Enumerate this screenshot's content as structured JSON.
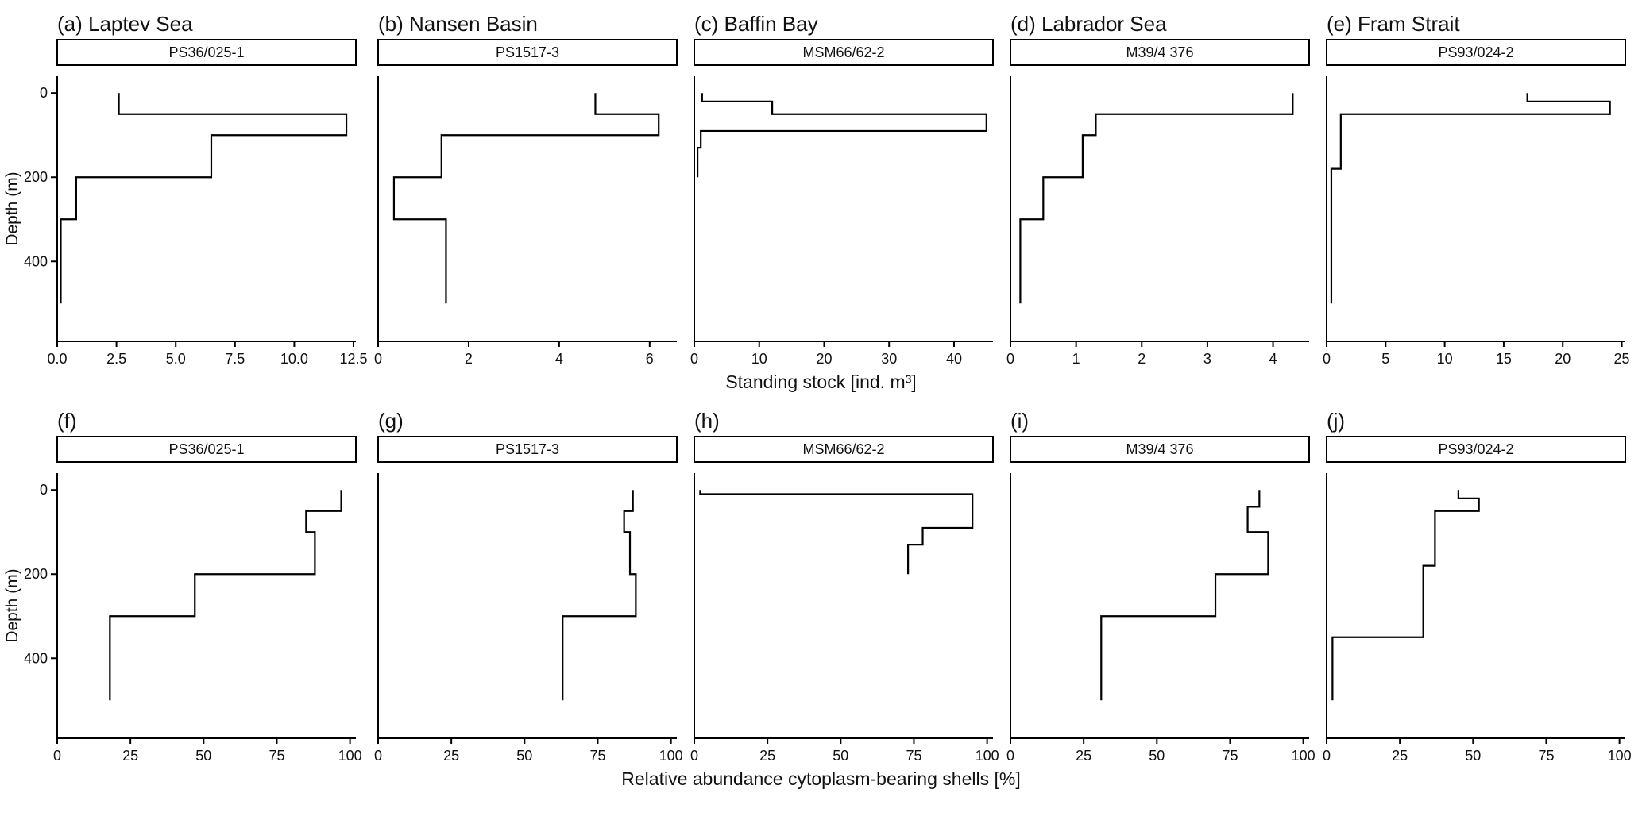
{
  "figure": {
    "row1_axis_title": "Standing stock [ind. m³]",
    "row2_axis_title": "Relative abundance cytoplasm-bearing shells [%]",
    "ylabel": "Depth (m)",
    "line_color": "#000000",
    "background": "#ffffff"
  },
  "chart_data": [
    {
      "id": "a",
      "row": 0,
      "type": "line",
      "profile": "stepped-depth-profile",
      "panel_label": "(a) Laptev Sea",
      "station": "PS36/025-1",
      "xlabel": "Standing stock [ind. m³]",
      "ylabel": "Depth (m)",
      "xlim": [
        0,
        12.6
      ],
      "ylim": [
        0,
        500
      ],
      "show_ytick_labels": true,
      "xticks": [
        {
          "v": 0,
          "label": "0.0"
        },
        {
          "v": 2.5,
          "label": "2.5"
        },
        {
          "v": 5,
          "label": "5.0"
        },
        {
          "v": 7.5,
          "label": "7.5"
        },
        {
          "v": 10,
          "label": "10.0"
        },
        {
          "v": 12.5,
          "label": "12.5"
        }
      ],
      "yticks": [
        {
          "v": 0,
          "label": "0"
        },
        {
          "v": 200,
          "label": "200"
        },
        {
          "v": 400,
          "label": "400"
        }
      ],
      "bins": [
        {
          "top": 0,
          "bottom": 50,
          "value": 2.6
        },
        {
          "top": 50,
          "bottom": 100,
          "value": 12.2
        },
        {
          "top": 100,
          "bottom": 200,
          "value": 6.5
        },
        {
          "top": 200,
          "bottom": 300,
          "value": 0.8
        },
        {
          "top": 300,
          "bottom": 500,
          "value": 0.15
        }
      ]
    },
    {
      "id": "b",
      "row": 0,
      "type": "line",
      "profile": "stepped-depth-profile",
      "panel_label": "(b) Nansen Basin",
      "station": "PS1517-3",
      "xlabel": "Standing stock [ind. m³]",
      "ylabel": "Depth (m)",
      "xlim": [
        0,
        6.6
      ],
      "ylim": [
        0,
        500
      ],
      "show_ytick_labels": false,
      "xticks": [
        {
          "v": 0,
          "label": "0"
        },
        {
          "v": 2,
          "label": "2"
        },
        {
          "v": 4,
          "label": "4"
        },
        {
          "v": 6,
          "label": "6"
        }
      ],
      "yticks": [
        {
          "v": 0,
          "label": "0"
        },
        {
          "v": 200,
          "label": "200"
        },
        {
          "v": 400,
          "label": "400"
        }
      ],
      "bins": [
        {
          "top": 0,
          "bottom": 50,
          "value": 4.8
        },
        {
          "top": 50,
          "bottom": 100,
          "value": 6.2
        },
        {
          "top": 100,
          "bottom": 200,
          "value": 1.4
        },
        {
          "top": 200,
          "bottom": 300,
          "value": 0.35
        },
        {
          "top": 300,
          "bottom": 500,
          "value": 1.5
        }
      ]
    },
    {
      "id": "c",
      "row": 0,
      "type": "line",
      "profile": "stepped-depth-profile",
      "panel_label": "(c) Baffin Bay",
      "station": "MSM66/62-2",
      "xlabel": "Standing stock [ind. m³]",
      "ylabel": "Depth (m)",
      "xlim": [
        0,
        46
      ],
      "ylim": [
        0,
        200
      ],
      "show_ytick_labels": false,
      "xticks": [
        {
          "v": 0,
          "label": "0"
        },
        {
          "v": 10,
          "label": "10"
        },
        {
          "v": 20,
          "label": "20"
        },
        {
          "v": 30,
          "label": "30"
        },
        {
          "v": 40,
          "label": "40"
        }
      ],
      "yticks": [
        {
          "v": 0,
          "label": "0"
        },
        {
          "v": 200,
          "label": "200"
        },
        {
          "v": 400,
          "label": "400"
        }
      ],
      "bins": [
        {
          "top": 0,
          "bottom": 20,
          "value": 1.2
        },
        {
          "top": 20,
          "bottom": 50,
          "value": 12
        },
        {
          "top": 50,
          "bottom": 90,
          "value": 45
        },
        {
          "top": 90,
          "bottom": 130,
          "value": 1.0
        },
        {
          "top": 130,
          "bottom": 200,
          "value": 0.5
        }
      ]
    },
    {
      "id": "d",
      "row": 0,
      "type": "line",
      "profile": "stepped-depth-profile",
      "panel_label": "(d) Labrador Sea",
      "station": "M39/4 376",
      "xlabel": "Standing stock [ind. m³]",
      "ylabel": "Depth (m)",
      "xlim": [
        0,
        4.55
      ],
      "ylim": [
        0,
        500
      ],
      "show_ytick_labels": false,
      "xticks": [
        {
          "v": 0,
          "label": "0"
        },
        {
          "v": 1,
          "label": "1"
        },
        {
          "v": 2,
          "label": "2"
        },
        {
          "v": 3,
          "label": "3"
        },
        {
          "v": 4,
          "label": "4"
        }
      ],
      "yticks": [
        {
          "v": 0,
          "label": "0"
        },
        {
          "v": 200,
          "label": "200"
        },
        {
          "v": 400,
          "label": "400"
        }
      ],
      "bins": [
        {
          "top": 0,
          "bottom": 50,
          "value": 4.3
        },
        {
          "top": 50,
          "bottom": 100,
          "value": 1.3
        },
        {
          "top": 100,
          "bottom": 200,
          "value": 1.1
        },
        {
          "top": 200,
          "bottom": 300,
          "value": 0.5
        },
        {
          "top": 300,
          "bottom": 500,
          "value": 0.15
        }
      ]
    },
    {
      "id": "e",
      "row": 0,
      "type": "line",
      "profile": "stepped-depth-profile",
      "panel_label": "(e) Fram Strait",
      "station": "PS93/024-2",
      "xlabel": "Standing stock [ind. m³]",
      "ylabel": "Depth (m)",
      "xlim": [
        0,
        25.3
      ],
      "ylim": [
        0,
        500
      ],
      "show_ytick_labels": false,
      "xticks": [
        {
          "v": 0,
          "label": "0"
        },
        {
          "v": 5,
          "label": "5"
        },
        {
          "v": 10,
          "label": "10"
        },
        {
          "v": 15,
          "label": "15"
        },
        {
          "v": 20,
          "label": "20"
        },
        {
          "v": 25,
          "label": "25"
        }
      ],
      "yticks": [
        {
          "v": 0,
          "label": "0"
        },
        {
          "v": 200,
          "label": "200"
        },
        {
          "v": 400,
          "label": "400"
        }
      ],
      "bins": [
        {
          "top": 0,
          "bottom": 20,
          "value": 17
        },
        {
          "top": 20,
          "bottom": 50,
          "value": 24
        },
        {
          "top": 50,
          "bottom": 180,
          "value": 1.2
        },
        {
          "top": 180,
          "bottom": 500,
          "value": 0.4
        }
      ]
    },
    {
      "id": "f",
      "row": 1,
      "type": "line",
      "profile": "stepped-depth-profile",
      "panel_label": "(f)",
      "station": "PS36/025-1",
      "xlabel": "Relative abundance cytoplasm-bearing shells [%]",
      "ylabel": "Depth (m)",
      "xlim": [
        0,
        102
      ],
      "ylim": [
        0,
        500
      ],
      "show_ytick_labels": true,
      "xticks": [
        {
          "v": 0,
          "label": "0"
        },
        {
          "v": 25,
          "label": "25"
        },
        {
          "v": 50,
          "label": "50"
        },
        {
          "v": 75,
          "label": "75"
        },
        {
          "v": 100,
          "label": "100"
        }
      ],
      "yticks": [
        {
          "v": 0,
          "label": "0"
        },
        {
          "v": 200,
          "label": "200"
        },
        {
          "v": 400,
          "label": "400"
        }
      ],
      "bins": [
        {
          "top": 0,
          "bottom": 50,
          "value": 97
        },
        {
          "top": 50,
          "bottom": 100,
          "value": 85
        },
        {
          "top": 100,
          "bottom": 200,
          "value": 88
        },
        {
          "top": 200,
          "bottom": 300,
          "value": 47
        },
        {
          "top": 300,
          "bottom": 500,
          "value": 18
        }
      ]
    },
    {
      "id": "g",
      "row": 1,
      "type": "line",
      "profile": "stepped-depth-profile",
      "panel_label": "(g)",
      "station": "PS1517-3",
      "xlabel": "Relative abundance cytoplasm-bearing shells [%]",
      "ylabel": "Depth (m)",
      "xlim": [
        0,
        102
      ],
      "ylim": [
        0,
        500
      ],
      "show_ytick_labels": false,
      "xticks": [
        {
          "v": 0,
          "label": "0"
        },
        {
          "v": 25,
          "label": "25"
        },
        {
          "v": 50,
          "label": "50"
        },
        {
          "v": 75,
          "label": "75"
        },
        {
          "v": 100,
          "label": "100"
        }
      ],
      "yticks": [
        {
          "v": 0,
          "label": "0"
        },
        {
          "v": 200,
          "label": "200"
        },
        {
          "v": 400,
          "label": "400"
        }
      ],
      "bins": [
        {
          "top": 0,
          "bottom": 50,
          "value": 87
        },
        {
          "top": 50,
          "bottom": 100,
          "value": 84
        },
        {
          "top": 100,
          "bottom": 200,
          "value": 86
        },
        {
          "top": 200,
          "bottom": 300,
          "value": 88
        },
        {
          "top": 300,
          "bottom": 500,
          "value": 63
        }
      ]
    },
    {
      "id": "h",
      "row": 1,
      "type": "line",
      "profile": "stepped-depth-profile",
      "panel_label": "(h)",
      "station": "MSM66/62-2",
      "xlabel": "Relative abundance cytoplasm-bearing shells [%]",
      "ylabel": "Depth (m)",
      "xlim": [
        0,
        102
      ],
      "ylim": [
        0,
        200
      ],
      "show_ytick_labels": false,
      "xticks": [
        {
          "v": 0,
          "label": "0"
        },
        {
          "v": 25,
          "label": "25"
        },
        {
          "v": 50,
          "label": "50"
        },
        {
          "v": 75,
          "label": "75"
        },
        {
          "v": 100,
          "label": "100"
        }
      ],
      "yticks": [
        {
          "v": 0,
          "label": "0"
        },
        {
          "v": 200,
          "label": "200"
        },
        {
          "v": 400,
          "label": "400"
        }
      ],
      "bins": [
        {
          "top": 0,
          "bottom": 10,
          "value": 2
        },
        {
          "top": 10,
          "bottom": 90,
          "value": 95
        },
        {
          "top": 90,
          "bottom": 130,
          "value": 78
        },
        {
          "top": 130,
          "bottom": 200,
          "value": 73
        }
      ]
    },
    {
      "id": "i",
      "row": 1,
      "type": "line",
      "profile": "stepped-depth-profile",
      "panel_label": "(i)",
      "station": "M39/4 376",
      "xlabel": "Relative abundance cytoplasm-bearing shells [%]",
      "ylabel": "Depth (m)",
      "xlim": [
        0,
        102
      ],
      "ylim": [
        0,
        500
      ],
      "show_ytick_labels": false,
      "xticks": [
        {
          "v": 0,
          "label": "0"
        },
        {
          "v": 25,
          "label": "25"
        },
        {
          "v": 50,
          "label": "50"
        },
        {
          "v": 75,
          "label": "75"
        },
        {
          "v": 100,
          "label": "100"
        }
      ],
      "yticks": [
        {
          "v": 0,
          "label": "0"
        },
        {
          "v": 200,
          "label": "200"
        },
        {
          "v": 400,
          "label": "400"
        }
      ],
      "bins": [
        {
          "top": 0,
          "bottom": 40,
          "value": 85
        },
        {
          "top": 40,
          "bottom": 100,
          "value": 81
        },
        {
          "top": 100,
          "bottom": 200,
          "value": 88
        },
        {
          "top": 200,
          "bottom": 300,
          "value": 70
        },
        {
          "top": 300,
          "bottom": 500,
          "value": 31
        }
      ]
    },
    {
      "id": "j",
      "row": 1,
      "type": "line",
      "profile": "stepped-depth-profile",
      "panel_label": "(j)",
      "station": "PS93/024-2",
      "xlabel": "Relative abundance cytoplasm-bearing shells [%]",
      "ylabel": "Depth (m)",
      "xlim": [
        0,
        102
      ],
      "ylim": [
        0,
        500
      ],
      "show_ytick_labels": false,
      "xticks": [
        {
          "v": 0,
          "label": "0"
        },
        {
          "v": 25,
          "label": "25"
        },
        {
          "v": 50,
          "label": "50"
        },
        {
          "v": 75,
          "label": "75"
        },
        {
          "v": 100,
          "label": "100"
        }
      ],
      "yticks": [
        {
          "v": 0,
          "label": "0"
        },
        {
          "v": 200,
          "label": "200"
        },
        {
          "v": 400,
          "label": "400"
        }
      ],
      "bins": [
        {
          "top": 0,
          "bottom": 20,
          "value": 45
        },
        {
          "top": 20,
          "bottom": 50,
          "value": 52
        },
        {
          "top": 50,
          "bottom": 180,
          "value": 37
        },
        {
          "top": 180,
          "bottom": 350,
          "value": 33
        },
        {
          "top": 350,
          "bottom": 500,
          "value": 2
        }
      ]
    }
  ]
}
